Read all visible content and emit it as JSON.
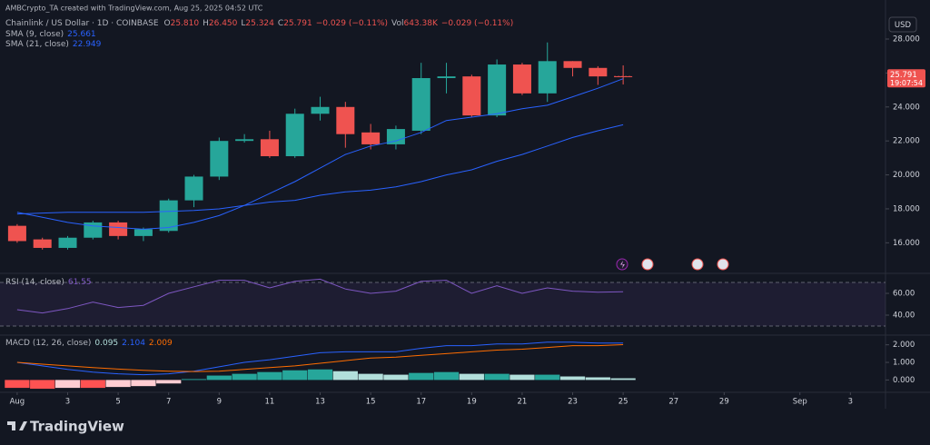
{
  "header": {
    "credit": "AMBCrypto_TA created with TradingView.com, Aug 25, 2025 04:52 UTC",
    "symbol": "Chainlink / US Dollar · 1D · COINBASE",
    "ohlc": [
      {
        "label": "O",
        "value": "25.810"
      },
      {
        "label": "H",
        "value": "26.450"
      },
      {
        "label": "L",
        "value": "25.324"
      },
      {
        "label": "C",
        "value": "25.791"
      }
    ],
    "change": "−0.029 (−0.11%)",
    "volume": {
      "label": "Vol",
      "value": "643.38K"
    },
    "volume_change": "−0.029 (−0.11%)",
    "currency": "USD",
    "logo": "TradingView"
  },
  "chart_data": [
    {
      "type": "candlestick",
      "x": [
        1,
        2,
        3,
        4,
        5,
        6,
        7,
        8,
        9,
        10,
        11,
        12,
        13,
        14,
        15,
        16,
        17,
        18,
        19,
        20,
        21,
        22,
        23,
        24,
        25
      ],
      "open": [
        17.0,
        16.2,
        15.7,
        16.3,
        17.2,
        16.4,
        16.7,
        18.5,
        19.9,
        22.0,
        22.1,
        21.1,
        23.6,
        24.0,
        22.5,
        21.8,
        22.6,
        25.7,
        25.8,
        23.5,
        26.5,
        24.8,
        26.7,
        26.3,
        25.81
      ],
      "high": [
        17.1,
        16.3,
        16.4,
        17.3,
        17.3,
        16.9,
        18.6,
        20.0,
        22.2,
        22.4,
        22.6,
        23.9,
        24.6,
        24.3,
        23.0,
        22.9,
        26.6,
        26.6,
        25.9,
        26.8,
        26.6,
        27.8,
        26.7,
        26.4,
        26.45
      ],
      "low": [
        16.0,
        15.6,
        15.6,
        16.2,
        16.2,
        16.1,
        16.6,
        18.1,
        19.7,
        21.9,
        21.0,
        21.0,
        23.2,
        21.6,
        21.5,
        21.5,
        22.4,
        24.8,
        23.4,
        23.4,
        24.7,
        24.3,
        25.8,
        25.3,
        25.324
      ],
      "close": [
        16.1,
        15.7,
        16.3,
        17.2,
        16.4,
        16.8,
        18.5,
        19.9,
        22.0,
        22.1,
        21.1,
        23.6,
        24.0,
        22.4,
        21.8,
        22.7,
        25.7,
        25.8,
        23.5,
        26.5,
        24.8,
        26.7,
        26.3,
        25.8,
        25.791
      ],
      "up_color": "#26a69a",
      "down_color": "#ef5350",
      "countdown": "19:07:54",
      "series": [
        {
          "name": "SMA (9, close)",
          "color": "#2962ff",
          "values": [
            17.8,
            17.5,
            17.2,
            17.0,
            16.9,
            16.8,
            16.9,
            17.2,
            17.6,
            18.2,
            18.9,
            19.6,
            20.4,
            21.2,
            21.7,
            22.0,
            22.5,
            23.2,
            23.4,
            23.6,
            23.9,
            24.1,
            24.6,
            25.1,
            25.661
          ]
        },
        {
          "name": "SMA (21, close)",
          "color": "#2962ff",
          "values": [
            17.7,
            17.75,
            17.8,
            17.8,
            17.8,
            17.8,
            17.85,
            17.9,
            18.0,
            18.2,
            18.4,
            18.5,
            18.8,
            19.0,
            19.1,
            19.3,
            19.6,
            20.0,
            20.3,
            20.8,
            21.2,
            21.7,
            22.2,
            22.6,
            22.949
          ]
        }
      ],
      "xlim": [
        0.32,
        35.39
      ],
      "ylim": [
        14.2,
        30.3
      ],
      "yticks": [
        {
          "value": 16,
          "label": "16.000"
        },
        {
          "value": 18,
          "label": "18.000"
        },
        {
          "value": 20,
          "label": "20.000"
        },
        {
          "value": 22,
          "label": "22.000"
        },
        {
          "value": 24,
          "label": "24.000"
        },
        {
          "value": 26,
          "label": "26.000"
        },
        {
          "value": 28,
          "label": "28.000"
        }
      ]
    },
    {
      "type": "line",
      "title": "RSI (14, close)",
      "series": [
        {
          "name": "RSI",
          "color": "#7e57c2",
          "values": [
            45,
            42,
            46,
            52,
            47,
            49,
            60,
            66,
            72,
            72,
            65,
            71,
            73,
            64,
            60,
            62,
            71,
            72,
            60,
            67,
            60,
            65,
            62,
            61,
            61.55
          ]
        }
      ],
      "band": [
        30,
        70
      ],
      "ylim": [
        22.5,
        76.7
      ],
      "yticks": [
        {
          "value": 40,
          "label": "40.00"
        },
        {
          "value": 60,
          "label": "60.00"
        }
      ]
    },
    {
      "type": "macd",
      "title": "MACD (12, 26, close)",
      "histogram": {
        "colors": [
          "#26a69a",
          "#b2dfdb",
          "#ff5252",
          "#ffcdd2"
        ],
        "values": [
          -0.45,
          -0.5,
          -0.45,
          -0.45,
          -0.4,
          -0.35,
          -0.2,
          0.05,
          0.25,
          0.35,
          0.45,
          0.55,
          0.6,
          0.5,
          0.35,
          0.3,
          0.4,
          0.45,
          0.35,
          0.35,
          0.3,
          0.3,
          0.2,
          0.15,
          0.095
        ]
      },
      "series": [
        {
          "color": "#2962ff",
          "values": [
            1.0,
            0.8,
            0.6,
            0.45,
            0.35,
            0.3,
            0.35,
            0.5,
            0.75,
            1.0,
            1.15,
            1.35,
            1.55,
            1.6,
            1.6,
            1.6,
            1.8,
            1.95,
            1.95,
            2.05,
            2.05,
            2.15,
            2.15,
            2.1,
            2.104
          ]
        },
        {
          "color": "#ff6d00",
          "values": [
            1.0,
            0.9,
            0.8,
            0.7,
            0.62,
            0.55,
            0.5,
            0.48,
            0.5,
            0.6,
            0.7,
            0.8,
            0.95,
            1.1,
            1.25,
            1.3,
            1.4,
            1.5,
            1.6,
            1.7,
            1.75,
            1.85,
            1.95,
            1.95,
            2.009
          ]
        }
      ],
      "ylim": [
        -0.6,
        2.5
      ],
      "yticks": [
        {
          "value": 0,
          "label": "0.000"
        },
        {
          "value": 1,
          "label": "1.000"
        },
        {
          "value": 2,
          "label": "2.000"
        }
      ],
      "xticks": [
        {
          "value": 1,
          "label": "Aug"
        },
        3,
        5,
        7,
        9,
        11,
        13,
        15,
        17,
        19,
        21,
        23,
        25,
        27,
        29,
        {
          "value": 32,
          "label": "Sep"
        },
        {
          "value": 34,
          "label": "3"
        }
      ]
    }
  ]
}
